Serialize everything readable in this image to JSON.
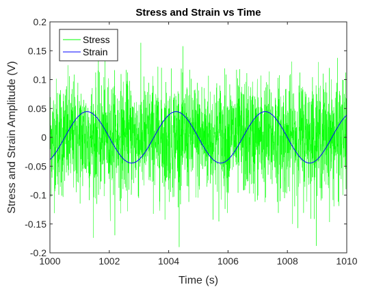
{
  "chart_data": {
    "type": "line",
    "title": "Stress and Strain vs Time",
    "xlabel": "Time (s)",
    "ylabel": "Stress and Strain Amplitude (V)",
    "xlim": [
      1000,
      1010
    ],
    "ylim": [
      -0.2,
      0.2
    ],
    "x_ticks": [
      1000,
      1002,
      1004,
      1006,
      1008,
      1010
    ],
    "y_ticks": [
      -0.2,
      -0.15,
      -0.1,
      -0.05,
      0,
      0.05,
      0.1,
      0.15,
      0.2
    ],
    "x_tick_labels": [
      "1000",
      "1002",
      "1004",
      "1006",
      "1008",
      "1010"
    ],
    "y_tick_labels": [
      "-0.2",
      "-0.15",
      "-0.1",
      "-0.05",
      "0",
      "0.05",
      "0.1",
      "0.15",
      "0.2"
    ],
    "grid": false,
    "legend_position": "top-left",
    "series": [
      {
        "name": "Stress",
        "color": "#00ff00",
        "kind": "noise",
        "mean": 0,
        "std": 0.05,
        "min": -0.19,
        "max": 0.195,
        "description": "dense broadband noise"
      },
      {
        "name": "Strain",
        "color": "#0000ff",
        "kind": "sine",
        "amplitude": 0.0445,
        "period": 3.0,
        "peak_at": 1001.25,
        "x": [
          1000,
          1001.25,
          1002.75,
          1004.25,
          1005.75,
          1007.25,
          1008.75,
          1010
        ],
        "y": [
          -0.04,
          0.0445,
          -0.0445,
          0.0445,
          -0.0445,
          0.0445,
          -0.0445,
          0.038
        ]
      }
    ]
  }
}
